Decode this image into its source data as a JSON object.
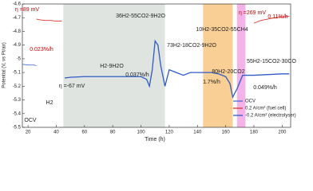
{
  "chart_data": {
    "type": "line",
    "x_label": "Time (h)",
    "y_label": "Potential (V, vs Pt/air)",
    "xlim": [
      16,
      206
    ],
    "xticks": [
      20,
      40,
      60,
      80,
      100,
      120,
      140,
      160,
      180,
      200
    ],
    "ylim": [
      -5.5,
      -4.6
    ],
    "yticks": [
      -4.6,
      -4.7,
      -4.8,
      -4.9,
      -5.0,
      -5.1,
      -5.2,
      -5.3,
      -5.4,
      -5.5
    ],
    "regions": [
      {
        "x": [
          45,
          117
        ],
        "color": "#dfe4e1"
      },
      {
        "x": [
          144,
          165
        ],
        "color": "#f9cf95"
      },
      {
        "x": [
          168,
          174
        ],
        "color": "#f4b3e8"
      }
    ],
    "series": [
      {
        "name": "OCV",
        "color": "#4a6fd0",
        "x": [
          16,
          20,
          24,
          26
        ],
        "values": [
          -5.04,
          -5.045,
          -5.045,
          -5.05
        ]
      },
      {
        "name": "0.2 A/cm² (fuel cell)",
        "color": "#e0362f",
        "x": [
          26,
          28,
          32,
          36,
          40,
          44,
          45,
          180,
          185,
          190,
          195,
          200,
          205
        ],
        "values": [
          -4.71,
          -4.715,
          -4.72,
          -4.72,
          -4.725,
          -4.725,
          null,
          -4.74,
          -4.72,
          -4.71,
          -4.7,
          -4.695,
          -4.69
        ]
      },
      {
        "name": "-0.2 A/cm² (electrolyser)",
        "color": "#2d5bc8",
        "x": [
          46,
          50,
          60,
          70,
          80,
          90,
          100,
          104,
          106,
          108,
          110,
          112,
          114,
          117,
          120,
          125,
          130,
          135,
          140,
          145,
          150,
          155,
          160,
          163,
          165,
          168,
          172,
          175,
          180,
          190,
          200,
          205
        ],
        "values": [
          -5.14,
          -5.135,
          -5.13,
          -5.13,
          -5.13,
          -5.13,
          -5.13,
          -5.15,
          -5.2,
          -5.08,
          -4.87,
          -4.9,
          -5.05,
          -5.2,
          -5.08,
          -5.1,
          -5.12,
          -5.1,
          -5.1,
          -5.1,
          -5.1,
          -5.11,
          -5.13,
          -5.18,
          -5.28,
          -5.22,
          -5.12,
          -5.12,
          -5.12,
          -5.115,
          -5.11,
          -5.11
        ]
      }
    ],
    "annotations": [
      "η =89 mV",
      "0.023%/h",
      "OCV",
      "H2",
      "H2-9H2O",
      "η =-67 mV",
      "0.037%/h",
      "36H2-55CO2-9H2O",
      "73H2-18CO2-9H2O",
      "10H2-35CO2-55CH4",
      "80H2-20CO2",
      "1.7%/h",
      "0.049%/h",
      "55H2-15CO2-30CO",
      "η =269 mV",
      "0.11%/h"
    ]
  }
}
